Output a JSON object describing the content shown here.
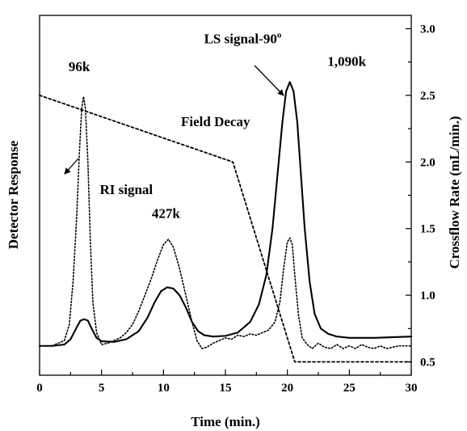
{
  "chart_data": {
    "type": "line",
    "xlabel": "Time (min.)",
    "ylabel_left": "Detector Response",
    "ylabel_right": "Crossflow Rate (mL/min.)",
    "xlim": [
      0,
      30
    ],
    "y_right_lim": [
      0.4,
      3.1
    ],
    "x_ticks": [
      0,
      5,
      10,
      15,
      20,
      25,
      30
    ],
    "x_tick_labels": [
      "0",
      "5",
      "10",
      "15",
      "20",
      "25",
      "30"
    ],
    "y_right_ticks": [
      0.5,
      1.0,
      1.5,
      2.0,
      2.5,
      3.0
    ],
    "y_right_tick_labels": [
      "0.5",
      "1.0",
      "1.5",
      "2.0",
      "2.5",
      "3.0"
    ],
    "grid": false,
    "series": [
      {
        "name": "LS signal-90°",
        "style": "solid",
        "axis": "left",
        "x": [
          0,
          1,
          2,
          2.5,
          3,
          3.3,
          3.6,
          3.9,
          4.2,
          4.6,
          5,
          6,
          7,
          8,
          8.7,
          9.3,
          9.8,
          10.3,
          10.8,
          11.3,
          11.8,
          12.3,
          12.8,
          13.3,
          14,
          15,
          16,
          17,
          17.7,
          18.3,
          18.8,
          19.2,
          19.6,
          19.9,
          20.2,
          20.5,
          20.8,
          21.1,
          21.4,
          21.8,
          22.2,
          22.7,
          23.3,
          24,
          25,
          27,
          30
        ],
        "y": [
          0.62,
          0.62,
          0.63,
          0.67,
          0.76,
          0.81,
          0.82,
          0.81,
          0.75,
          0.68,
          0.655,
          0.65,
          0.67,
          0.73,
          0.83,
          0.95,
          1.03,
          1.06,
          1.05,
          1.0,
          0.91,
          0.8,
          0.73,
          0.7,
          0.69,
          0.695,
          0.72,
          0.8,
          0.93,
          1.15,
          1.5,
          1.9,
          2.3,
          2.53,
          2.6,
          2.53,
          2.3,
          1.9,
          1.5,
          1.1,
          0.86,
          0.75,
          0.71,
          0.69,
          0.68,
          0.68,
          0.69
        ]
      },
      {
        "name": "RI signal",
        "style": "dotted",
        "axis": "left",
        "x": [
          0,
          1,
          2,
          2.4,
          2.7,
          3.0,
          3.2,
          3.4,
          3.55,
          3.7,
          3.9,
          4.1,
          4.3,
          4.6,
          5,
          5.5,
          6,
          6.5,
          7,
          7.5,
          8,
          8.5,
          9,
          9.5,
          10,
          10.4,
          10.8,
          11.3,
          11.8,
          12.3,
          12.7,
          13.1,
          13.5,
          14,
          14.5,
          15,
          15.5,
          16,
          16.5,
          17,
          17.5,
          18,
          18.5,
          19,
          19.4,
          19.7,
          20,
          20.2,
          20.4,
          20.6,
          20.9,
          21.2,
          21.6,
          22,
          22.5,
          23,
          23.5,
          24,
          24.5,
          25,
          25.5,
          26,
          26.5,
          27,
          27.5,
          28,
          28.5,
          29,
          30
        ],
        "y": [
          0.62,
          0.62,
          0.66,
          0.78,
          1.1,
          1.6,
          2.05,
          2.4,
          2.49,
          2.4,
          2.0,
          1.4,
          0.95,
          0.72,
          0.63,
          0.64,
          0.66,
          0.68,
          0.72,
          0.78,
          0.88,
          1.0,
          1.12,
          1.26,
          1.38,
          1.42,
          1.36,
          1.2,
          1.0,
          0.8,
          0.66,
          0.6,
          0.61,
          0.64,
          0.66,
          0.68,
          0.67,
          0.7,
          0.69,
          0.71,
          0.7,
          0.72,
          0.74,
          0.8,
          0.95,
          1.2,
          1.4,
          1.43,
          1.38,
          1.15,
          0.85,
          0.68,
          0.63,
          0.6,
          0.64,
          0.61,
          0.6,
          0.63,
          0.6,
          0.62,
          0.6,
          0.63,
          0.61,
          0.6,
          0.62,
          0.6,
          0.61,
          0.62,
          0.62
        ]
      },
      {
        "name": "Field Decay",
        "style": "dashed",
        "axis": "right",
        "x": [
          0,
          15.6,
          20.6,
          30
        ],
        "y": [
          2.5,
          2.0,
          0.5,
          0.5
        ]
      }
    ],
    "annotations": [
      {
        "text": "96k",
        "x": 3.2,
        "y": 2.68
      },
      {
        "text": "427k",
        "x": 10.2,
        "y": 1.58
      },
      {
        "text": "1,090k",
        "x": 24.8,
        "y": 2.72
      },
      {
        "text": "Field Decay",
        "x": 14.2,
        "y": 2.27
      },
      {
        "text": "RI signal",
        "x": 7.0,
        "y": 1.76
      },
      {
        "text": "LS signal-90",
        "x": 16.4,
        "y": 2.89,
        "superscript": "o"
      }
    ]
  }
}
